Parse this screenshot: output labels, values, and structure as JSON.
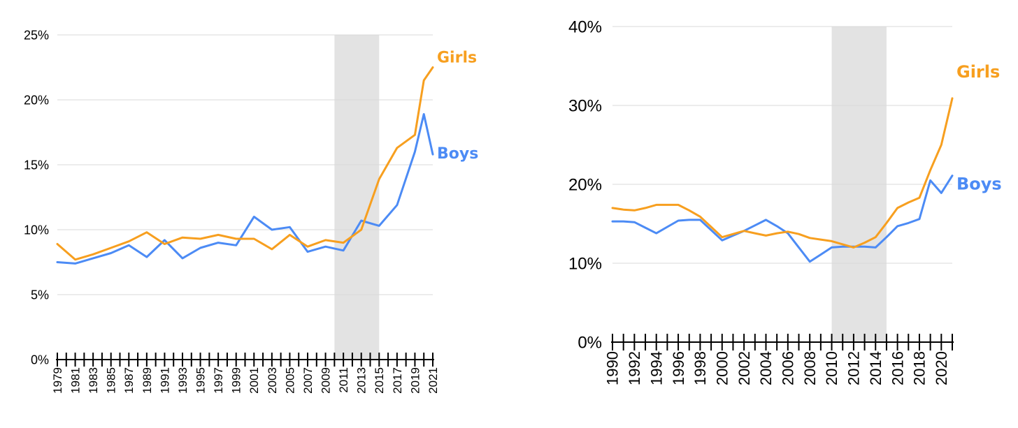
{
  "colors": {
    "girls": "#F79F1F",
    "boys": "#4C8BF5"
  },
  "chart_data": [
    {
      "type": "line",
      "ylim": [
        0,
        25
      ],
      "yticks": [
        "0%",
        "5%",
        "10%",
        "15%",
        "20%",
        "25%"
      ],
      "ytick_values": [
        0,
        5,
        10,
        15,
        20,
        25
      ],
      "xlim": [
        1979,
        2021
      ],
      "xtick_labels": [
        "1979",
        "1981",
        "1983",
        "1985",
        "1987",
        "1989",
        "1991",
        "1993",
        "1995",
        "1997",
        "1999",
        "2001",
        "2003",
        "2005",
        "2007",
        "2009",
        "2011",
        "2013",
        "2015",
        "2017",
        "2019",
        "2021"
      ],
      "shaded_range": [
        2010,
        2015
      ],
      "x": [
        1979,
        1981,
        1983,
        1985,
        1987,
        1989,
        1991,
        1993,
        1995,
        1997,
        1999,
        2001,
        2003,
        2005,
        2007,
        2009,
        2011,
        2013,
        2015,
        2017,
        2019,
        2020,
        2021
      ],
      "series": [
        {
          "name": "Girls",
          "color": "#F79F1F",
          "values": [
            8.9,
            7.7,
            8.1,
            8.6,
            9.1,
            9.8,
            8.9,
            9.4,
            9.3,
            9.6,
            9.3,
            9.3,
            8.5,
            9.6,
            8.7,
            9.2,
            9.0,
            10.0,
            13.9,
            16.3,
            17.3,
            21.5,
            22.5
          ]
        },
        {
          "name": "Boys",
          "color": "#4C8BF5",
          "values": [
            7.5,
            7.4,
            7.8,
            8.2,
            8.8,
            7.9,
            9.2,
            7.8,
            8.6,
            9.0,
            8.8,
            11.0,
            10.0,
            10.2,
            8.3,
            8.7,
            8.4,
            10.7,
            10.3,
            11.9,
            16.0,
            18.9,
            15.8
          ]
        }
      ]
    },
    {
      "type": "line",
      "ylim": [
        0,
        40
      ],
      "yticks": [
        "0%",
        "10%",
        "20%",
        "30%",
        "40%"
      ],
      "ytick_values": [
        0,
        10,
        20,
        30,
        40
      ],
      "xlim": [
        1990,
        2021
      ],
      "xtick_labels": [
        "1990",
        "1992",
        "1994",
        "1996",
        "1998",
        "2000",
        "2002",
        "2004",
        "2006",
        "2008",
        "2010",
        "2012",
        "2014",
        "2016",
        "2018",
        "2020"
      ],
      "shaded_range": [
        2010,
        2015
      ],
      "x": [
        1990,
        1991,
        1992,
        1993,
        1994,
        1995,
        1996,
        1997,
        1998,
        1999,
        2000,
        2001,
        2002,
        2003,
        2004,
        2005,
        2006,
        2007,
        2008,
        2009,
        2010,
        2011,
        2012,
        2013,
        2014,
        2015,
        2016,
        2017,
        2018,
        2019,
        2020,
        2021
      ],
      "series": [
        {
          "name": "Girls",
          "color": "#F79F1F",
          "values": [
            17.0,
            16.8,
            16.7,
            17.0,
            17.4,
            17.4,
            17.4,
            16.7,
            15.9,
            14.6,
            13.3,
            13.7,
            14.1,
            13.8,
            13.5,
            13.8,
            14.0,
            13.7,
            13.2,
            13.0,
            12.8,
            12.4,
            12.0,
            12.6,
            13.3,
            15.1,
            17.0,
            17.7,
            18.3,
            21.8,
            25.0,
            30.9
          ]
        },
        {
          "name": "Boys",
          "color": "#4C8BF5",
          "values": [
            15.3,
            15.3,
            15.2,
            14.5,
            13.8,
            14.6,
            15.4,
            15.5,
            15.5,
            14.2,
            12.9,
            13.5,
            14.1,
            14.8,
            15.5,
            14.7,
            13.8,
            12.0,
            10.2,
            11.1,
            12.0,
            12.1,
            12.1,
            12.1,
            12.0,
            13.3,
            14.7,
            15.1,
            15.6,
            20.5,
            18.9,
            21.1
          ]
        }
      ]
    }
  ]
}
